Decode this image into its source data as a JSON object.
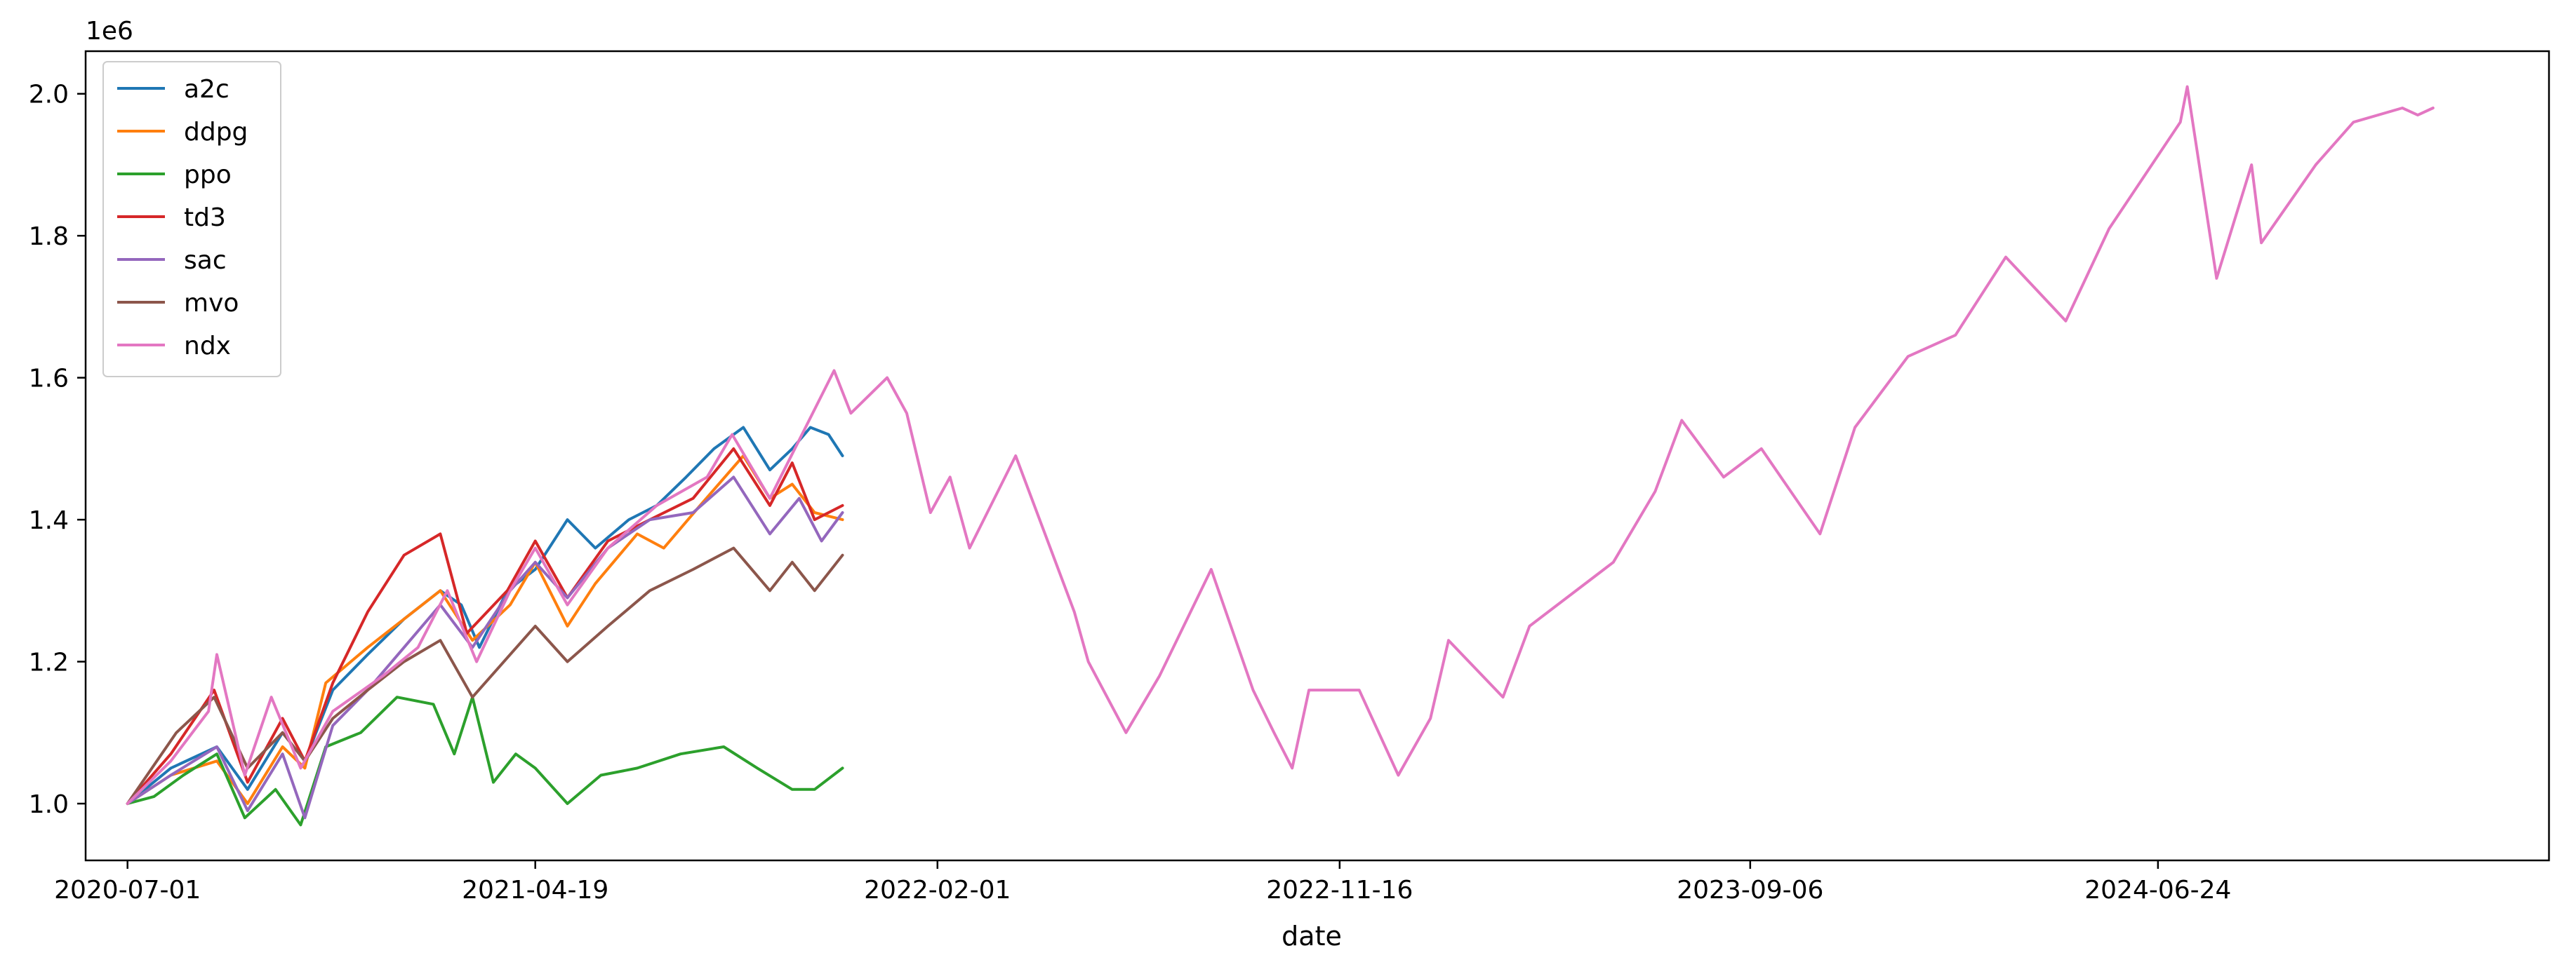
{
  "chart_data": {
    "type": "line",
    "title": "",
    "xlabel": "date",
    "ylabel": "",
    "y_offset_label": "1e6",
    "xlim": [
      "2020-06-01",
      "2025-03-31"
    ],
    "ylim": [
      0.92,
      2.06
    ],
    "x_ticks": [
      "2020-07-01",
      "2021-04-19",
      "2022-02-01",
      "2022-11-16",
      "2023-09-06",
      "2024-06-24"
    ],
    "y_ticks": [
      {
        "value": 1.0,
        "label": "1.0"
      },
      {
        "value": 1.2,
        "label": "1.2"
      },
      {
        "value": 1.4,
        "label": "1.4"
      },
      {
        "value": 1.6,
        "label": "1.6"
      },
      {
        "value": 1.8,
        "label": "1.8"
      },
      {
        "value": 2.0,
        "label": "2.0"
      }
    ],
    "grid": false,
    "legend_position": "top-left",
    "series": [
      {
        "name": "a2c",
        "color": "#1f77b4",
        "points": [
          [
            "2020-07-01",
            1.0
          ],
          [
            "2020-08-01",
            1.05
          ],
          [
            "2020-09-03",
            1.08
          ],
          [
            "2020-09-25",
            1.02
          ],
          [
            "2020-10-20",
            1.1
          ],
          [
            "2020-11-05",
            1.06
          ],
          [
            "2020-11-25",
            1.16
          ],
          [
            "2020-12-20",
            1.21
          ],
          [
            "2021-01-15",
            1.26
          ],
          [
            "2021-02-10",
            1.3
          ],
          [
            "2021-02-25",
            1.28
          ],
          [
            "2021-03-10",
            1.22
          ],
          [
            "2021-03-30",
            1.3
          ],
          [
            "2021-04-19",
            1.33
          ],
          [
            "2021-05-12",
            1.4
          ],
          [
            "2021-06-01",
            1.36
          ],
          [
            "2021-06-25",
            1.4
          ],
          [
            "2021-07-15",
            1.42
          ],
          [
            "2021-08-05",
            1.46
          ],
          [
            "2021-08-25",
            1.5
          ],
          [
            "2021-09-15",
            1.53
          ],
          [
            "2021-10-04",
            1.47
          ],
          [
            "2021-10-20",
            1.5
          ],
          [
            "2021-11-02",
            1.53
          ],
          [
            "2021-11-15",
            1.52
          ],
          [
            "2021-11-25",
            1.49
          ]
        ]
      },
      {
        "name": "ddpg",
        "color": "#ff7f0e",
        "points": [
          [
            "2020-07-01",
            1.0
          ],
          [
            "2020-08-01",
            1.04
          ],
          [
            "2020-09-03",
            1.06
          ],
          [
            "2020-09-25",
            1.0
          ],
          [
            "2020-10-20",
            1.08
          ],
          [
            "2020-11-05",
            1.05
          ],
          [
            "2020-11-20",
            1.17
          ],
          [
            "2020-12-20",
            1.22
          ],
          [
            "2021-01-15",
            1.26
          ],
          [
            "2021-02-10",
            1.3
          ],
          [
            "2021-03-05",
            1.23
          ],
          [
            "2021-04-01",
            1.28
          ],
          [
            "2021-04-19",
            1.34
          ],
          [
            "2021-05-12",
            1.25
          ],
          [
            "2021-06-01",
            1.31
          ],
          [
            "2021-07-01",
            1.38
          ],
          [
            "2021-07-20",
            1.36
          ],
          [
            "2021-08-15",
            1.42
          ],
          [
            "2021-09-15",
            1.49
          ],
          [
            "2021-10-04",
            1.43
          ],
          [
            "2021-10-20",
            1.45
          ],
          [
            "2021-11-05",
            1.41
          ],
          [
            "2021-11-25",
            1.4
          ]
        ]
      },
      {
        "name": "ppo",
        "color": "#2ca02c",
        "points": [
          [
            "2020-07-01",
            1.0
          ],
          [
            "2020-07-20",
            1.01
          ],
          [
            "2020-08-10",
            1.04
          ],
          [
            "2020-09-03",
            1.07
          ],
          [
            "2020-09-23",
            0.98
          ],
          [
            "2020-10-15",
            1.02
          ],
          [
            "2020-11-02",
            0.97
          ],
          [
            "2020-11-20",
            1.08
          ],
          [
            "2020-12-15",
            1.1
          ],
          [
            "2021-01-10",
            1.15
          ],
          [
            "2021-02-05",
            1.14
          ],
          [
            "2021-02-20",
            1.07
          ],
          [
            "2021-03-05",
            1.15
          ],
          [
            "2021-03-20",
            1.03
          ],
          [
            "2021-04-05",
            1.07
          ],
          [
            "2021-04-19",
            1.05
          ],
          [
            "2021-05-12",
            1.0
          ],
          [
            "2021-06-05",
            1.04
          ],
          [
            "2021-07-01",
            1.05
          ],
          [
            "2021-08-01",
            1.07
          ],
          [
            "2021-09-01",
            1.08
          ],
          [
            "2021-09-25",
            1.05
          ],
          [
            "2021-10-20",
            1.02
          ],
          [
            "2021-11-05",
            1.02
          ],
          [
            "2021-11-25",
            1.05
          ]
        ]
      },
      {
        "name": "td3",
        "color": "#d62728",
        "points": [
          [
            "2020-07-01",
            1.0
          ],
          [
            "2020-08-01",
            1.07
          ],
          [
            "2020-09-01",
            1.16
          ],
          [
            "2020-09-25",
            1.03
          ],
          [
            "2020-10-20",
            1.12
          ],
          [
            "2020-11-05",
            1.06
          ],
          [
            "2020-11-25",
            1.17
          ],
          [
            "2020-12-20",
            1.27
          ],
          [
            "2021-01-15",
            1.35
          ],
          [
            "2021-02-10",
            1.38
          ],
          [
            "2021-03-01",
            1.24
          ],
          [
            "2021-03-30",
            1.3
          ],
          [
            "2021-04-19",
            1.37
          ],
          [
            "2021-05-12",
            1.29
          ],
          [
            "2021-06-10",
            1.37
          ],
          [
            "2021-07-10",
            1.4
          ],
          [
            "2021-08-10",
            1.43
          ],
          [
            "2021-09-08",
            1.5
          ],
          [
            "2021-10-04",
            1.42
          ],
          [
            "2021-10-20",
            1.48
          ],
          [
            "2021-11-05",
            1.4
          ],
          [
            "2021-11-25",
            1.42
          ]
        ]
      },
      {
        "name": "sac",
        "color": "#9467bd",
        "points": [
          [
            "2020-07-01",
            1.0
          ],
          [
            "2020-08-01",
            1.04
          ],
          [
            "2020-09-03",
            1.08
          ],
          [
            "2020-09-25",
            0.99
          ],
          [
            "2020-10-20",
            1.07
          ],
          [
            "2020-11-05",
            0.98
          ],
          [
            "2020-11-25",
            1.11
          ],
          [
            "2020-12-20",
            1.16
          ],
          [
            "2021-01-15",
            1.22
          ],
          [
            "2021-02-10",
            1.28
          ],
          [
            "2021-03-05",
            1.22
          ],
          [
            "2021-04-01",
            1.3
          ],
          [
            "2021-04-19",
            1.34
          ],
          [
            "2021-05-12",
            1.29
          ],
          [
            "2021-06-10",
            1.36
          ],
          [
            "2021-07-10",
            1.4
          ],
          [
            "2021-08-10",
            1.41
          ],
          [
            "2021-09-08",
            1.46
          ],
          [
            "2021-10-04",
            1.38
          ],
          [
            "2021-10-25",
            1.43
          ],
          [
            "2021-11-10",
            1.37
          ],
          [
            "2021-11-25",
            1.41
          ]
        ]
      },
      {
        "name": "mvo",
        "color": "#8c564b",
        "points": [
          [
            "2020-07-01",
            1.0
          ],
          [
            "2020-08-05",
            1.1
          ],
          [
            "2020-09-01",
            1.15
          ],
          [
            "2020-09-25",
            1.05
          ],
          [
            "2020-10-20",
            1.1
          ],
          [
            "2020-11-05",
            1.06
          ],
          [
            "2020-11-25",
            1.12
          ],
          [
            "2020-12-20",
            1.16
          ],
          [
            "2021-01-15",
            1.2
          ],
          [
            "2021-02-10",
            1.23
          ],
          [
            "2021-03-05",
            1.15
          ],
          [
            "2021-04-01",
            1.21
          ],
          [
            "2021-04-19",
            1.25
          ],
          [
            "2021-05-12",
            1.2
          ],
          [
            "2021-06-10",
            1.25
          ],
          [
            "2021-07-10",
            1.3
          ],
          [
            "2021-08-10",
            1.33
          ],
          [
            "2021-09-08",
            1.36
          ],
          [
            "2021-10-04",
            1.3
          ],
          [
            "2021-10-20",
            1.34
          ],
          [
            "2021-11-05",
            1.3
          ],
          [
            "2021-11-25",
            1.35
          ]
        ]
      },
      {
        "name": "ndx",
        "color": "#e377c2",
        "points": [
          [
            "2020-07-01",
            1.0
          ],
          [
            "2020-08-01",
            1.06
          ],
          [
            "2020-08-28",
            1.13
          ],
          [
            "2020-09-03",
            1.21
          ],
          [
            "2020-09-23",
            1.04
          ],
          [
            "2020-10-12",
            1.15
          ],
          [
            "2020-11-02",
            1.05
          ],
          [
            "2020-11-25",
            1.13
          ],
          [
            "2020-12-31",
            1.18
          ],
          [
            "2021-01-25",
            1.22
          ],
          [
            "2021-02-15",
            1.3
          ],
          [
            "2021-03-08",
            1.2
          ],
          [
            "2021-04-01",
            1.3
          ],
          [
            "2021-04-19",
            1.36
          ],
          [
            "2021-05-12",
            1.28
          ],
          [
            "2021-06-10",
            1.36
          ],
          [
            "2021-07-15",
            1.42
          ],
          [
            "2021-08-20",
            1.46
          ],
          [
            "2021-09-07",
            1.52
          ],
          [
            "2021-10-04",
            1.43
          ],
          [
            "2021-11-19",
            1.61
          ],
          [
            "2021-12-01",
            1.55
          ],
          [
            "2021-12-27",
            1.6
          ],
          [
            "2022-01-10",
            1.55
          ],
          [
            "2022-01-27",
            1.41
          ],
          [
            "2022-02-10",
            1.46
          ],
          [
            "2022-02-24",
            1.36
          ],
          [
            "2022-03-29",
            1.49
          ],
          [
            "2022-05-10",
            1.27
          ],
          [
            "2022-05-20",
            1.2
          ],
          [
            "2022-06-16",
            1.1
          ],
          [
            "2022-07-10",
            1.18
          ],
          [
            "2022-08-16",
            1.33
          ],
          [
            "2022-09-15",
            1.16
          ],
          [
            "2022-09-30",
            1.1
          ],
          [
            "2022-10-13",
            1.05
          ],
          [
            "2022-10-25",
            1.16
          ],
          [
            "2022-11-30",
            1.16
          ],
          [
            "2022-12-28",
            1.04
          ],
          [
            "2023-01-20",
            1.12
          ],
          [
            "2023-02-02",
            1.23
          ],
          [
            "2023-03-13",
            1.15
          ],
          [
            "2023-04-01",
            1.25
          ],
          [
            "2023-05-31",
            1.34
          ],
          [
            "2023-06-30",
            1.44
          ],
          [
            "2023-07-19",
            1.54
          ],
          [
            "2023-08-18",
            1.46
          ],
          [
            "2023-09-14",
            1.5
          ],
          [
            "2023-10-26",
            1.38
          ],
          [
            "2023-11-20",
            1.53
          ],
          [
            "2023-12-28",
            1.63
          ],
          [
            "2024-01-31",
            1.66
          ],
          [
            "2024-03-07",
            1.77
          ],
          [
            "2024-04-19",
            1.68
          ],
          [
            "2024-05-20",
            1.81
          ],
          [
            "2024-07-10",
            1.96
          ],
          [
            "2024-07-15",
            2.01
          ],
          [
            "2024-08-05",
            1.74
          ],
          [
            "2024-08-30",
            1.9
          ],
          [
            "2024-09-06",
            1.79
          ],
          [
            "2024-10-15",
            1.9
          ],
          [
            "2024-11-11",
            1.96
          ],
          [
            "2024-12-16",
            1.98
          ],
          [
            "2024-12-27",
            1.97
          ],
          [
            "2025-01-07",
            1.98
          ]
        ]
      }
    ]
  }
}
